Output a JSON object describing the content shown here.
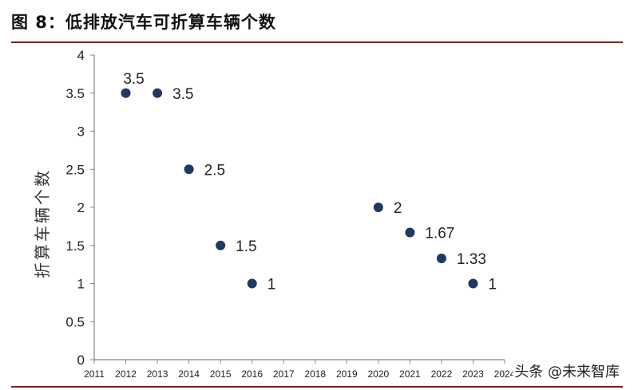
{
  "figure": {
    "title": "图 8：低排放汽车可折算车辆个数",
    "watermark": "头条 @未来智库"
  },
  "colors": {
    "rule": "#8b1a1a",
    "point": "#1f3864",
    "axis": "#888888"
  },
  "chart_data": {
    "type": "scatter",
    "ylabel": "折算车辆个数",
    "xlabel": "",
    "xlim": [
      2011,
      2024
    ],
    "ylim": [
      0,
      4
    ],
    "x_ticks": [
      "2011",
      "2012",
      "2013",
      "2014",
      "2015",
      "2016",
      "2017",
      "2018",
      "2019",
      "2020",
      "2021",
      "2022",
      "2023",
      "2024"
    ],
    "y_ticks": [
      "0",
      "0.5",
      "1",
      "1.5",
      "2",
      "2.5",
      "3",
      "3.5",
      "4"
    ],
    "grid": false,
    "points": [
      {
        "x": 2012,
        "y": 3.5,
        "label": "3.5"
      },
      {
        "x": 2013,
        "y": 3.5,
        "label": "3.5"
      },
      {
        "x": 2014,
        "y": 2.5,
        "label": "2.5"
      },
      {
        "x": 2015,
        "y": 1.5,
        "label": "1.5"
      },
      {
        "x": 2016,
        "y": 1,
        "label": "1"
      },
      {
        "x": 2020,
        "y": 2,
        "label": "2"
      },
      {
        "x": 2021,
        "y": 1.67,
        "label": "1.67"
      },
      {
        "x": 2022,
        "y": 1.33,
        "label": "1.33"
      },
      {
        "x": 2023,
        "y": 1,
        "label": "1"
      }
    ]
  }
}
